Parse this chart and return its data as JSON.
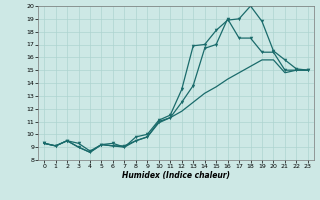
{
  "xlabel": "Humidex (Indice chaleur)",
  "bg_color": "#cde8e5",
  "line_color": "#1a6b6b",
  "grid_color": "#aed4d0",
  "xlim": [
    -0.5,
    23.5
  ],
  "ylim": [
    8,
    20
  ],
  "xticks": [
    0,
    1,
    2,
    3,
    4,
    5,
    6,
    7,
    8,
    9,
    10,
    11,
    12,
    13,
    14,
    15,
    16,
    17,
    18,
    19,
    20,
    21,
    22,
    23
  ],
  "yticks": [
    8,
    9,
    10,
    11,
    12,
    13,
    14,
    15,
    16,
    17,
    18,
    19,
    20
  ],
  "line1_x": [
    0,
    1,
    2,
    3,
    4,
    5,
    6,
    7,
    8,
    9,
    10,
    11,
    12,
    13,
    14,
    15,
    16,
    17,
    18,
    19,
    20,
    21,
    22,
    23
  ],
  "line1_y": [
    9.3,
    9.1,
    9.5,
    9.3,
    8.7,
    9.2,
    9.3,
    9.0,
    9.8,
    10.0,
    11.1,
    11.5,
    13.5,
    16.9,
    17.0,
    18.1,
    18.9,
    19.0,
    20.0,
    18.8,
    16.5,
    15.8,
    15.1,
    15.0
  ],
  "line2_x": [
    0,
    1,
    2,
    3,
    4,
    5,
    6,
    7,
    8,
    9,
    10,
    11,
    12,
    13,
    14,
    15,
    16,
    17,
    18,
    19,
    20,
    21,
    22,
    23
  ],
  "line2_y": [
    9.3,
    9.1,
    9.5,
    9.0,
    8.6,
    9.2,
    9.1,
    9.1,
    9.5,
    9.8,
    11.0,
    11.3,
    12.5,
    13.8,
    16.7,
    17.0,
    19.0,
    17.5,
    17.5,
    16.4,
    16.4,
    15.0,
    15.0,
    15.0
  ],
  "line3_x": [
    0,
    1,
    2,
    3,
    4,
    5,
    6,
    7,
    8,
    9,
    10,
    11,
    12,
    13,
    14,
    15,
    16,
    17,
    18,
    19,
    20,
    21,
    22,
    23
  ],
  "line3_y": [
    9.3,
    9.1,
    9.5,
    9.0,
    8.6,
    9.2,
    9.1,
    9.0,
    9.5,
    9.8,
    10.9,
    11.3,
    11.8,
    12.5,
    13.2,
    13.7,
    14.3,
    14.8,
    15.3,
    15.8,
    15.8,
    14.8,
    15.0,
    15.0
  ]
}
